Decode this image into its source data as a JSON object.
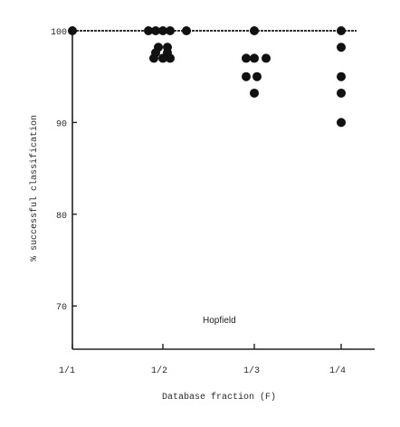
{
  "chart_data": {
    "type": "scatter",
    "title": "",
    "xlabel": "Database fraction (F)",
    "ylabel": "% successful classification",
    "annotation": "Hopfield",
    "x_categories": [
      "1/1",
      "1/2",
      "1/3",
      "1/4"
    ],
    "yticks": [
      70,
      80,
      90,
      100
    ],
    "ytick_labels": [
      "70",
      "80",
      "90",
      "100"
    ],
    "ylim": [
      65,
      100
    ],
    "grid": false,
    "legend": "none",
    "colors": {
      "marker": "#111111",
      "axis": "#222222",
      "reference_line": "#333333"
    },
    "reference_line": {
      "y": 100,
      "style": "dashed"
    },
    "series": [
      {
        "points": [
          {
            "x": "1/1",
            "offset": 0.0,
            "y": 100
          },
          {
            "x": "1/2",
            "offset": -0.16,
            "y": 100
          },
          {
            "x": "1/2",
            "offset": -0.08,
            "y": 100
          },
          {
            "x": "1/2",
            "offset": 0.0,
            "y": 100
          },
          {
            "x": "1/2",
            "offset": 0.08,
            "y": 100
          },
          {
            "x": "1/2",
            "offset": 0.26,
            "y": 100
          },
          {
            "x": "1/2",
            "offset": -0.05,
            "y": 98.2
          },
          {
            "x": "1/2",
            "offset": 0.05,
            "y": 98.2
          },
          {
            "x": "1/2",
            "offset": -0.08,
            "y": 97.6
          },
          {
            "x": "1/2",
            "offset": 0.05,
            "y": 97.6
          },
          {
            "x": "1/2",
            "offset": -0.1,
            "y": 97
          },
          {
            "x": "1/2",
            "offset": 0.0,
            "y": 97
          },
          {
            "x": "1/2",
            "offset": 0.08,
            "y": 97
          },
          {
            "x": "1/3",
            "offset": 0.0,
            "y": 100
          },
          {
            "x": "1/3",
            "offset": -0.09,
            "y": 97
          },
          {
            "x": "1/3",
            "offset": 0.0,
            "y": 97
          },
          {
            "x": "1/3",
            "offset": 0.13,
            "y": 97
          },
          {
            "x": "1/3",
            "offset": -0.09,
            "y": 95
          },
          {
            "x": "1/3",
            "offset": 0.03,
            "y": 95
          },
          {
            "x": "1/3",
            "offset": 0.0,
            "y": 93.2
          },
          {
            "x": "1/4",
            "offset": 0.0,
            "y": 100
          },
          {
            "x": "1/4",
            "offset": 0.0,
            "y": 98.2
          },
          {
            "x": "1/4",
            "offset": 0.0,
            "y": 95
          },
          {
            "x": "1/4",
            "offset": 0.0,
            "y": 93.2
          },
          {
            "x": "1/4",
            "offset": 0.0,
            "y": 90
          }
        ]
      }
    ]
  }
}
